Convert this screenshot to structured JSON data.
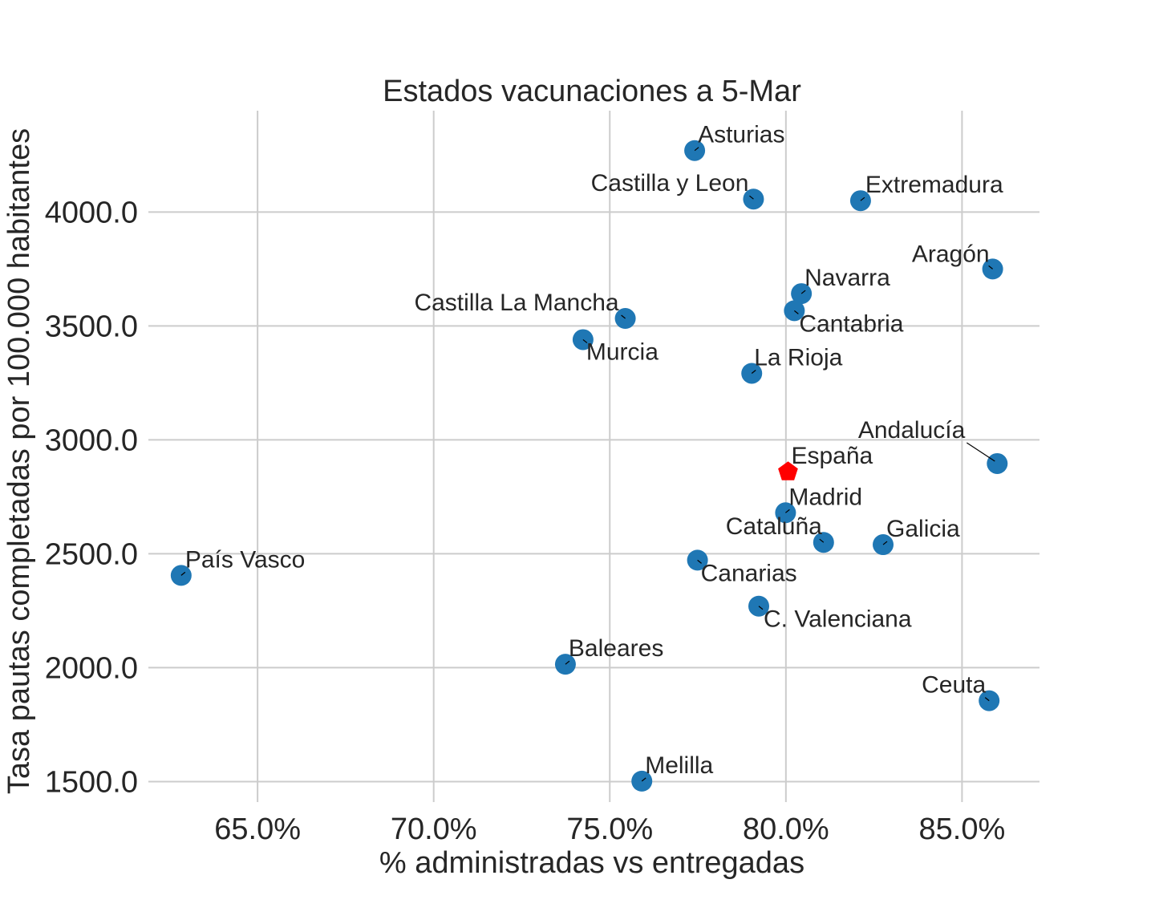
{
  "chart_data": {
    "type": "scatter",
    "title": "Estados vacunaciones a 5-Mar",
    "xlabel": "% administradas vs entregadas",
    "ylabel": "Tasa pautas completadas por 100.000 habitantes",
    "xlim": [
      0.619,
      0.872
    ],
    "ylim": [
      1410,
      4445
    ],
    "xticks": [
      0.65,
      0.7,
      0.75,
      0.8,
      0.85
    ],
    "xtick_labels": [
      "65.0%",
      "70.0%",
      "75.0%",
      "80.0%",
      "85.0%"
    ],
    "yticks": [
      1500,
      2000,
      2500,
      3000,
      3500,
      4000
    ],
    "ytick_labels": [
      "1500.0",
      "2000.0",
      "2500.0",
      "3000.0",
      "3500.0",
      "4000.0"
    ],
    "grid": true,
    "colors": {
      "points": "#1f77b4",
      "highlight": "#ff0000"
    },
    "points": [
      {
        "label": "Asturias",
        "x": 0.7741,
        "y": 4270,
        "label_dx": 4,
        "label_dy": -10,
        "anchor": "start"
      },
      {
        "label": "Castilla y Leon",
        "x": 0.7908,
        "y": 4057,
        "label_dx": -6,
        "label_dy": -10,
        "anchor": "end"
      },
      {
        "label": "Extremadura",
        "x": 0.8212,
        "y": 4050,
        "label_dx": 6,
        "label_dy": -10,
        "anchor": "start"
      },
      {
        "label": "Aragón",
        "x": 0.8587,
        "y": 3750,
        "label_dx": -4,
        "label_dy": -9,
        "anchor": "end"
      },
      {
        "label": "Navarra",
        "x": 0.8044,
        "y": 3642,
        "label_dx": 4,
        "label_dy": -10,
        "anchor": "start"
      },
      {
        "label": "Castilla La Mancha",
        "x": 0.7544,
        "y": 3533,
        "label_dx": -8,
        "label_dy": -10,
        "anchor": "end"
      },
      {
        "label": "Cantabria",
        "x": 0.8024,
        "y": 3567,
        "label_dx": 6,
        "label_dy": 26,
        "anchor": "start"
      },
      {
        "label": "Murcia",
        "x": 0.7424,
        "y": 3440,
        "label_dx": 4,
        "label_dy": 25,
        "anchor": "start"
      },
      {
        "label": "La Rioja",
        "x": 0.7903,
        "y": 3292,
        "label_dx": 3,
        "label_dy": -10,
        "anchor": "start"
      },
      {
        "label": "Andalucía",
        "x": 0.86,
        "y": 2896,
        "label_dx": -40,
        "label_dy": -32,
        "anchor": "end",
        "leader": true
      },
      {
        "label": "Madrid",
        "x": 0.7999,
        "y": 2680,
        "label_dx": 4,
        "label_dy": -10,
        "anchor": "start"
      },
      {
        "label": "Cataluña",
        "x": 0.8107,
        "y": 2550,
        "label_dx": -2,
        "label_dy": -10,
        "anchor": "end"
      },
      {
        "label": "Galicia",
        "x": 0.8276,
        "y": 2540,
        "label_dx": 4,
        "label_dy": -10,
        "anchor": "start"
      },
      {
        "label": "Canarias",
        "x": 0.7749,
        "y": 2472,
        "label_dx": 4,
        "label_dy": 26,
        "anchor": "start"
      },
      {
        "label": "País Vasco",
        "x": 0.6283,
        "y": 2405,
        "label_dx": 5,
        "label_dy": -10,
        "anchor": "start"
      },
      {
        "label": "C. Valenciana",
        "x": 0.7923,
        "y": 2270,
        "label_dx": 6,
        "label_dy": 26,
        "anchor": "start"
      },
      {
        "label": "Baleares",
        "x": 0.7374,
        "y": 2015,
        "label_dx": 4,
        "label_dy": -10,
        "anchor": "start"
      },
      {
        "label": "Ceuta",
        "x": 0.8577,
        "y": 1855,
        "label_dx": -4,
        "label_dy": -10,
        "anchor": "end"
      },
      {
        "label": "Melilla",
        "x": 0.7591,
        "y": 1502,
        "label_dx": 4,
        "label_dy": -10,
        "anchor": "start"
      }
    ],
    "highlight": {
      "label": "España",
      "x": 0.8006,
      "y": 2860,
      "marker": "pentagon",
      "label_dx": 4,
      "label_dy": -10,
      "anchor": "start"
    }
  }
}
